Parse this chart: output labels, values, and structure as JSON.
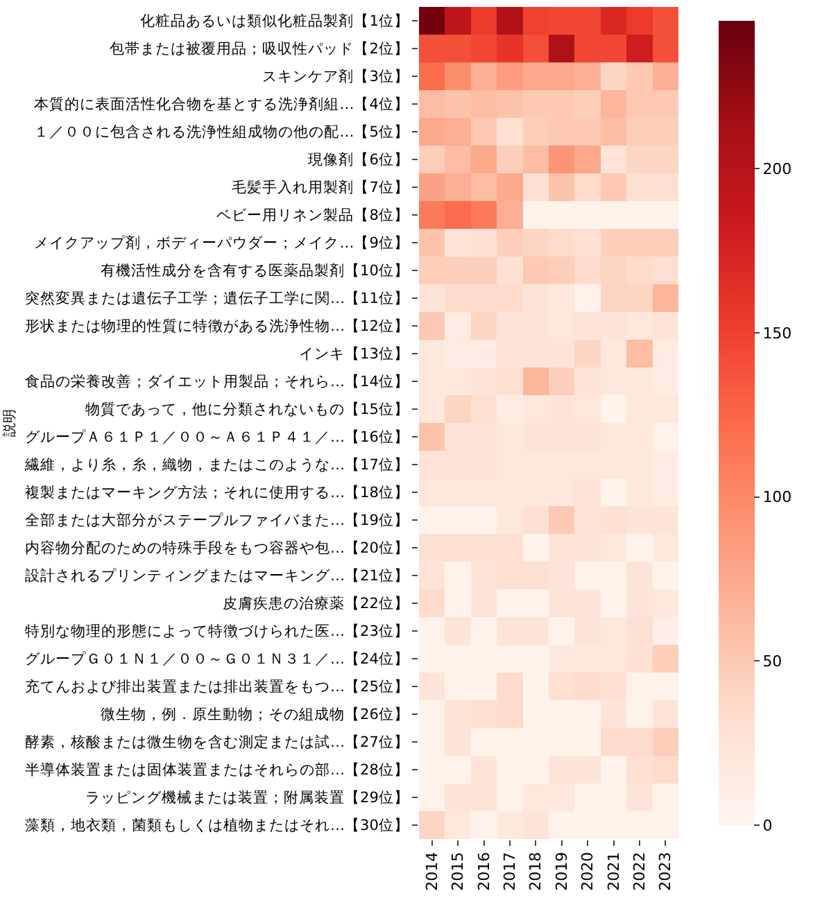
{
  "chart_data": {
    "type": "heatmap",
    "ylabel": "説明",
    "categories": [
      "2014",
      "2015",
      "2016",
      "2017",
      "2018",
      "2019",
      "2020",
      "2021",
      "2022",
      "2023"
    ],
    "y_categories": [
      "化粧品あるいは類似化粧品製剤【1位】",
      "包帯または被覆用品；吸収性パッド【2位】",
      "スキンケア剤【3位】",
      "本質的に表面活性化合物を基とする洗浄剤組…【4位】",
      "１／００に包含される洗浄性組成物の他の配…【5位】",
      "現像剤【6位】",
      "毛髪手入れ用製剤【7位】",
      "ベビー用リネン製品【8位】",
      "メイクアップ剤，ボディーパウダー；メイク…【9位】",
      "有機活性成分を含有する医薬品製剤【10位】",
      "突然変異または遺伝子工学；遺伝子工学に関…【11位】",
      "形状または物理的性質に特徴がある洗浄性物…【12位】",
      "インキ【13位】",
      "食品の栄養改善；ダイエット用製品；それら…【14位】",
      "物質であって，他に分類されないもの【15位】",
      "グループＡ６１Ｐ１／００～Ａ６１Ｐ４１／…【16位】",
      "繊維，より糸，糸，織物，またはこのような…【17位】",
      "複製またはマーキング方法；それに使用する…【18位】",
      "全部または大部分がステープルファイバまた…【19位】",
      "内容物分配のための特殊手段をもつ容器や包…【20位】",
      "設計されるプリンティングまたはマーキング…【21位】",
      "皮膚疾患の治療薬【22位】",
      "特別な物理的形態によって特徴づけられた医…【23位】",
      "グループＧ０１Ｎ１／００～Ｇ０１Ｎ３１／…【24位】",
      "充てんおよび排出装置または排出装置をもつ…【25位】",
      "微生物，例．原生動物；その組成物【26位】",
      "酵素，核酸または微生物を含む測定または試…【27位】",
      "半導体装置または固体装置またはそれらの部…【28位】",
      "ラッピング機械または装置；附属装置【29位】",
      "藻類，地衣類，菌類もしくは植物またはそれ…【30位】"
    ],
    "cells": [
      [
        240,
        195,
        155,
        205,
        150,
        145,
        145,
        170,
        155,
        140
      ],
      [
        140,
        140,
        145,
        160,
        140,
        205,
        145,
        145,
        180,
        140
      ],
      [
        120,
        95,
        70,
        85,
        75,
        75,
        70,
        40,
        50,
        70
      ],
      [
        60,
        55,
        60,
        55,
        50,
        50,
        45,
        65,
        50,
        50
      ],
      [
        75,
        70,
        50,
        30,
        45,
        50,
        50,
        60,
        45,
        45
      ],
      [
        45,
        60,
        75,
        45,
        60,
        90,
        75,
        25,
        40,
        40
      ],
      [
        80,
        70,
        60,
        75,
        30,
        55,
        35,
        50,
        30,
        30
      ],
      [
        110,
        120,
        110,
        70,
        5,
        5,
        5,
        5,
        5,
        5
      ],
      [
        55,
        25,
        30,
        45,
        40,
        35,
        30,
        45,
        45,
        45
      ],
      [
        45,
        45,
        45,
        30,
        50,
        45,
        35,
        40,
        35,
        30
      ],
      [
        25,
        35,
        35,
        35,
        25,
        20,
        5,
        40,
        40,
        65
      ],
      [
        50,
        15,
        40,
        25,
        25,
        20,
        25,
        25,
        20,
        25
      ],
      [
        20,
        15,
        15,
        25,
        25,
        25,
        40,
        20,
        60,
        15
      ],
      [
        20,
        20,
        25,
        30,
        65,
        45,
        25,
        20,
        20,
        15
      ],
      [
        20,
        40,
        30,
        15,
        20,
        25,
        20,
        5,
        20,
        20
      ],
      [
        55,
        25,
        25,
        20,
        25,
        25,
        25,
        20,
        20,
        5
      ],
      [
        25,
        25,
        25,
        20,
        20,
        20,
        20,
        20,
        20,
        15
      ],
      [
        20,
        20,
        20,
        20,
        20,
        20,
        25,
        5,
        20,
        15
      ],
      [
        5,
        5,
        5,
        20,
        30,
        50,
        25,
        30,
        25,
        25
      ],
      [
        30,
        30,
        30,
        30,
        5,
        25,
        25,
        20,
        5,
        20
      ],
      [
        25,
        5,
        25,
        30,
        30,
        25,
        5,
        5,
        25,
        5
      ],
      [
        35,
        5,
        25,
        5,
        5,
        25,
        25,
        5,
        25,
        20
      ],
      [
        5,
        25,
        5,
        25,
        25,
        5,
        25,
        20,
        30,
        10
      ],
      [
        5,
        5,
        5,
        5,
        5,
        20,
        20,
        20,
        30,
        45
      ],
      [
        25,
        5,
        5,
        35,
        5,
        30,
        35,
        30,
        5,
        5
      ],
      [
        5,
        25,
        30,
        35,
        5,
        5,
        5,
        25,
        5,
        25
      ],
      [
        5,
        25,
        5,
        5,
        5,
        5,
        5,
        35,
        35,
        45
      ],
      [
        5,
        5,
        25,
        5,
        5,
        25,
        25,
        5,
        30,
        35
      ],
      [
        5,
        25,
        25,
        5,
        20,
        20,
        5,
        5,
        25,
        5
      ],
      [
        40,
        20,
        5,
        20,
        25,
        5,
        5,
        5,
        5,
        5
      ]
    ],
    "clim": [
      0,
      245
    ],
    "cticks": [
      0,
      50,
      100,
      150,
      200
    ]
  }
}
